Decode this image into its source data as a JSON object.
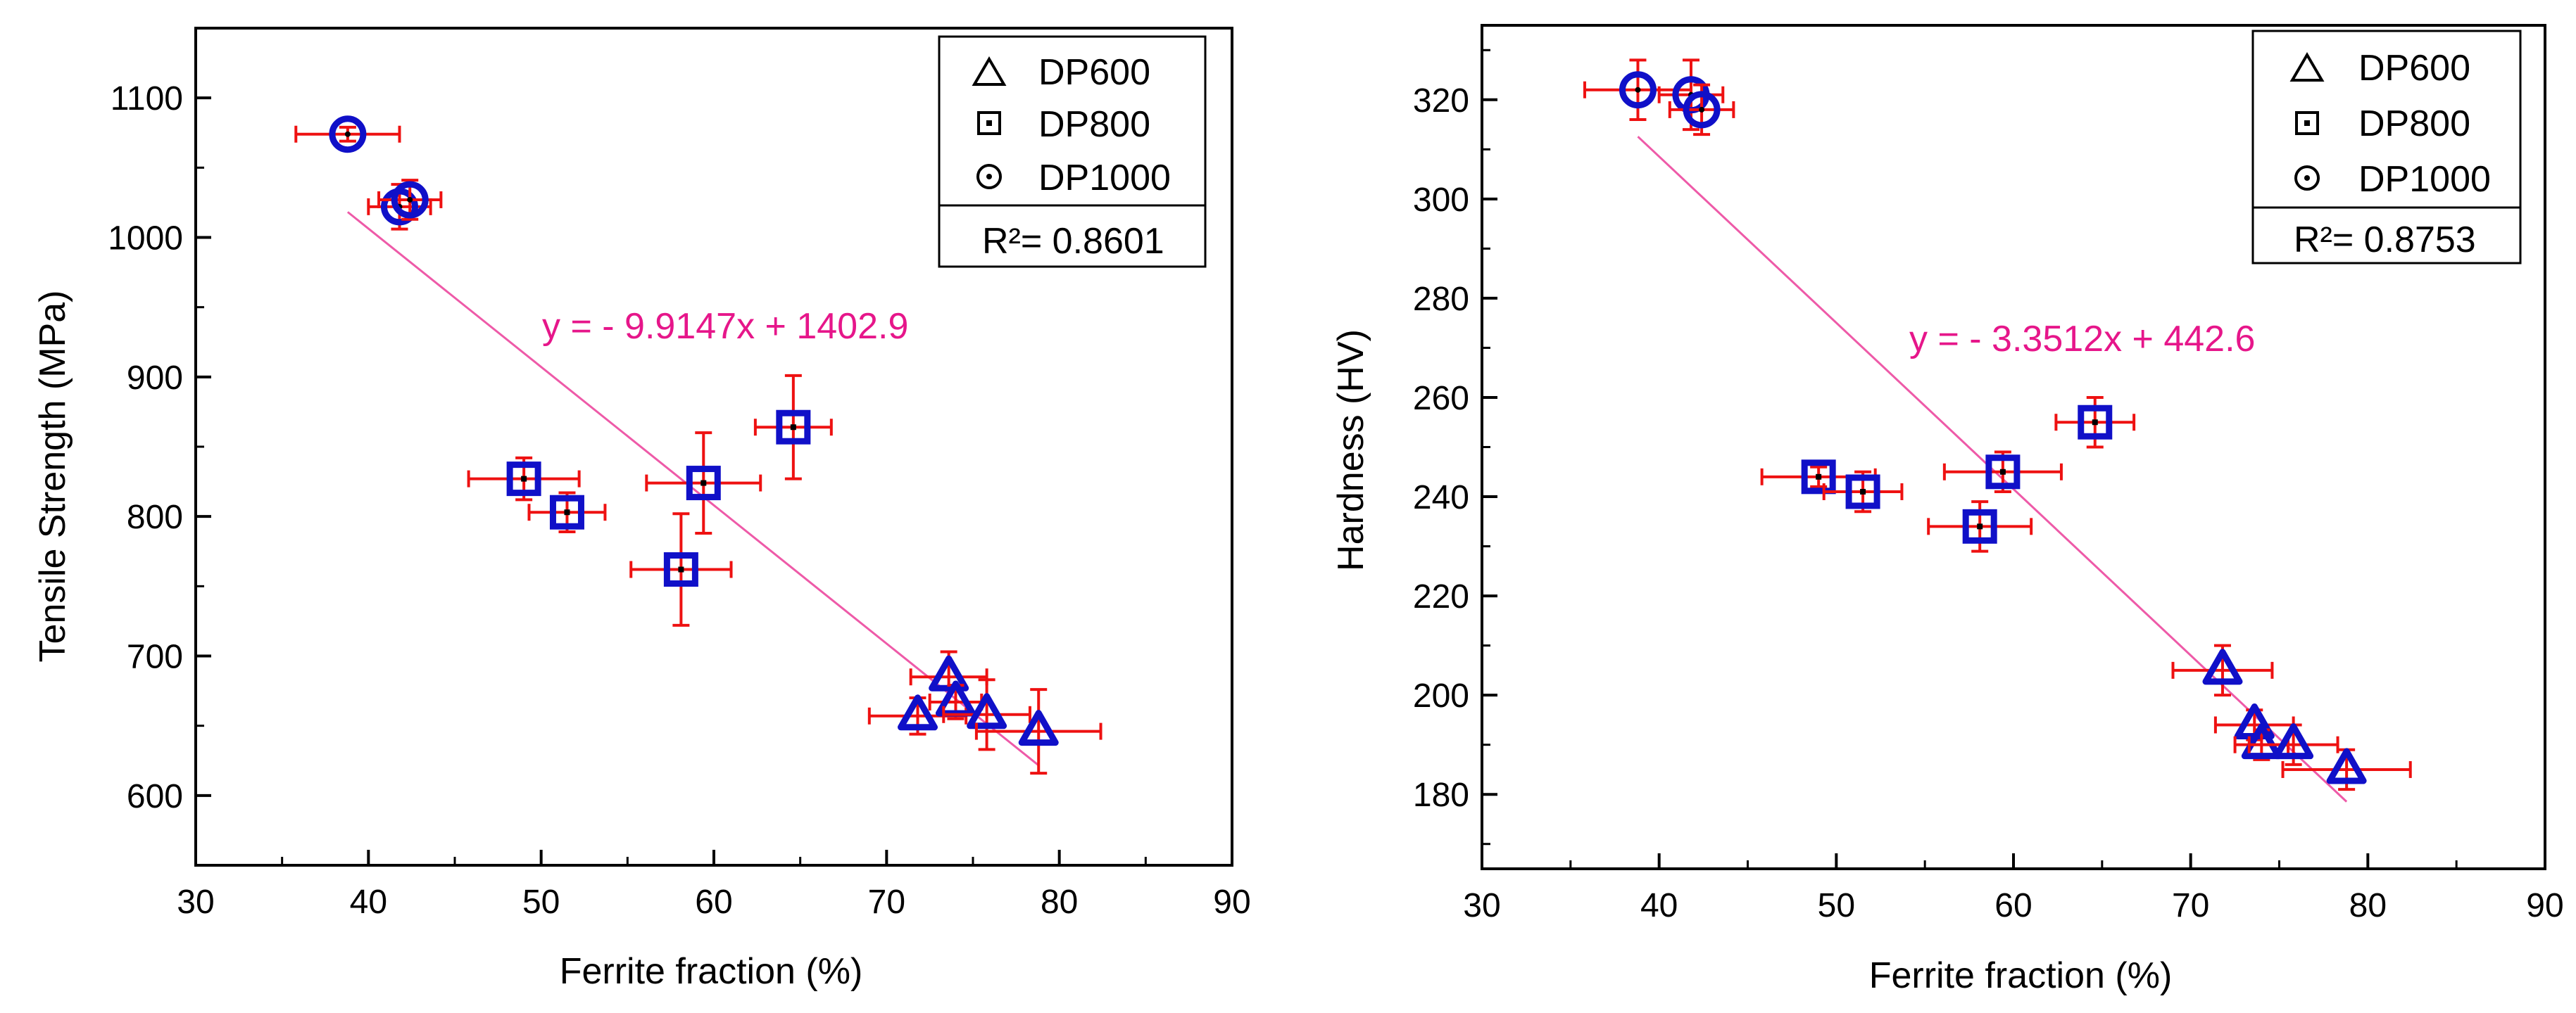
{
  "chart_data": [
    {
      "type": "scatter",
      "title": "",
      "xlabel": "Ferrite fraction (%)",
      "ylabel": "Tensile Strength (MPa)",
      "xlim": [
        30,
        90
      ],
      "ylim": [
        550,
        1150
      ],
      "xticks": [
        30,
        40,
        50,
        60,
        70,
        80,
        90
      ],
      "yticks": [
        600,
        700,
        800,
        900,
        1000,
        1100
      ],
      "legend": [
        "DP600",
        "DP800",
        "DP1000"
      ],
      "r2_text": "R²= 0.8601",
      "fit_equation": "y = - 9.9147x + 1402.9",
      "fit_line": {
        "slope": -9.9147,
        "intercept": 1402.9,
        "x_range": [
          38.8,
          78.8
        ]
      },
      "series": [
        {
          "name": "DP600",
          "marker": "triangle",
          "points": [
            {
              "x": 71.8,
              "y": 657,
              "xerr": 2.8,
              "yerr": 13
            },
            {
              "x": 73.6,
              "y": 685,
              "xerr": 2.2,
              "yerr": 18
            },
            {
              "x": 74.0,
              "y": 667,
              "xerr": 1.5,
              "yerr": 12
            },
            {
              "x": 75.8,
              "y": 658,
              "xerr": 2.5,
              "yerr": 25
            },
            {
              "x": 78.8,
              "y": 646,
              "xerr": 3.6,
              "yerr": 30
            }
          ]
        },
        {
          "name": "DP800",
          "marker": "square",
          "points": [
            {
              "x": 49.0,
              "y": 827,
              "xerr": 3.2,
              "yerr": 15
            },
            {
              "x": 51.5,
              "y": 803,
              "xerr": 2.2,
              "yerr": 14
            },
            {
              "x": 58.1,
              "y": 762,
              "xerr": 2.9,
              "yerr": 40
            },
            {
              "x": 59.4,
              "y": 824,
              "xerr": 3.3,
              "yerr": 36
            },
            {
              "x": 64.6,
              "y": 864,
              "xerr": 2.2,
              "yerr": 37
            }
          ]
        },
        {
          "name": "DP1000",
          "marker": "circle",
          "points": [
            {
              "x": 38.8,
              "y": 1074,
              "xerr": 3.0,
              "yerr": 5
            },
            {
              "x": 41.8,
              "y": 1022,
              "xerr": 1.8,
              "yerr": 16
            },
            {
              "x": 42.4,
              "y": 1027,
              "xerr": 1.8,
              "yerr": 14
            }
          ]
        }
      ]
    },
    {
      "type": "scatter",
      "title": "",
      "xlabel": "Ferrite fraction (%)",
      "ylabel": "Hardness (HV)",
      "xlim": [
        30,
        90
      ],
      "ylim": [
        165,
        335
      ],
      "xticks": [
        30,
        40,
        50,
        60,
        70,
        80,
        90
      ],
      "yticks": [
        180,
        200,
        220,
        240,
        260,
        280,
        300,
        320
      ],
      "legend": [
        "DP600",
        "DP800",
        "DP1000"
      ],
      "r2_text": "R²= 0.8753",
      "fit_equation": "y = - 3.3512x + 442.6",
      "fit_line": {
        "slope": -3.3512,
        "intercept": 442.6,
        "x_range": [
          38.8,
          78.8
        ]
      },
      "series": [
        {
          "name": "DP600",
          "marker": "triangle",
          "points": [
            {
              "x": 71.8,
              "y": 205,
              "xerr": 2.8,
              "yerr": 5
            },
            {
              "x": 73.6,
              "y": 194,
              "xerr": 2.2,
              "yerr": 3
            },
            {
              "x": 74.0,
              "y": 190,
              "xerr": 1.5,
              "yerr": 3
            },
            {
              "x": 75.8,
              "y": 190,
              "xerr": 2.5,
              "yerr": 4
            },
            {
              "x": 78.8,
              "y": 185,
              "xerr": 3.6,
              "yerr": 4
            }
          ]
        },
        {
          "name": "DP800",
          "marker": "square",
          "points": [
            {
              "x": 49.0,
              "y": 244,
              "xerr": 3.2,
              "yerr": 2
            },
            {
              "x": 51.5,
              "y": 241,
              "xerr": 2.2,
              "yerr": 4
            },
            {
              "x": 58.1,
              "y": 234,
              "xerr": 2.9,
              "yerr": 5
            },
            {
              "x": 59.4,
              "y": 245,
              "xerr": 3.3,
              "yerr": 4
            },
            {
              "x": 64.6,
              "y": 255,
              "xerr": 2.2,
              "yerr": 5
            }
          ]
        },
        {
          "name": "DP1000",
          "marker": "circle",
          "points": [
            {
              "x": 38.8,
              "y": 322,
              "xerr": 3.0,
              "yerr": 6
            },
            {
              "x": 41.8,
              "y": 321,
              "xerr": 1.8,
              "yerr": 7
            },
            {
              "x": 42.4,
              "y": 318,
              "xerr": 1.8,
              "yerr": 5
            }
          ]
        }
      ]
    }
  ],
  "colors": {
    "marker": "#1010c8",
    "error_bar": "#ee1111",
    "fit_line": "#ee5aa8",
    "fit_text": "#e6168a",
    "axis": "#000000"
  }
}
